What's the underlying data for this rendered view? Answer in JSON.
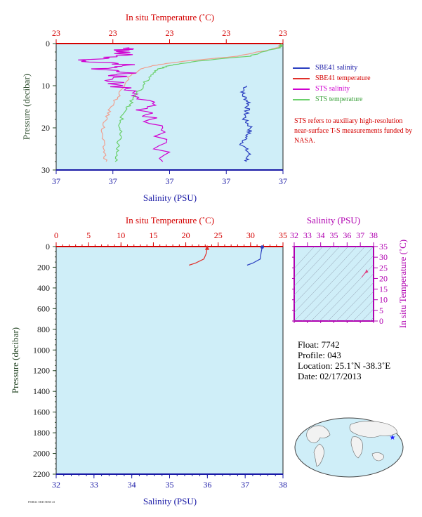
{
  "colors": {
    "plot_bg": "#cfeef8",
    "temp_axis": "#d40000",
    "sal_axis": "#1a1aa6",
    "pres_axis": "#2a4a2a",
    "sbe_sal": "#2a3fc0",
    "sbe_temp": "#e0302a",
    "sts_sal": "#d000d0",
    "sts_temp": "#6ad06a",
    "sts_temp_old": "#f0a090",
    "ts_axis": "#b000b0"
  },
  "chart_data": [
    {
      "type": "line",
      "top_xlabel": "In situ Temperature (˚C)",
      "top_ticks": [
        "23",
        "23",
        "23",
        "23",
        "23"
      ],
      "bottom_xlabel": "Salinity (PSU)",
      "bottom_ticks": [
        "37",
        "37",
        "37",
        "37",
        "37"
      ],
      "ylabel": "Pressure (decibar)",
      "y_ticks": [
        "0",
        "10",
        "20",
        "30"
      ],
      "ylim": [
        0,
        30
      ],
      "series": [
        {
          "name": "SBE41 salinity",
          "x_frac": [
            0.84,
            0.82,
            0.85,
            0.84,
            0.83,
            0.86,
            0.84,
            0.82,
            0.85,
            0.84
          ],
          "y": [
            10,
            12,
            14,
            16,
            18,
            20,
            22,
            24,
            26,
            28
          ]
        },
        {
          "name": "SBE41 temperature",
          "x_frac": [
            1.0,
            0.98,
            0.8,
            0.6,
            0.45,
            0.37,
            0.32,
            0.28,
            0.24,
            0.22,
            0.2,
            0.21,
            0.22
          ],
          "y": [
            0,
            1,
            3,
            4,
            5,
            6,
            8,
            12,
            15,
            18,
            21,
            25,
            28
          ]
        },
        {
          "name": "STS salinity",
          "x_frac": [
            0.32,
            0.28,
            0.3,
            0.1,
            0.3,
            0.2,
            0.32,
            0.25,
            0.27,
            0.38,
            0.4,
            0.4,
            0.45,
            0.47
          ],
          "y": [
            1,
            2,
            3,
            4,
            5,
            6,
            7,
            8,
            10,
            12,
            15,
            18,
            22,
            28
          ]
        },
        {
          "name": "STS temperature",
          "x_frac": [
            1.0,
            0.98,
            0.85,
            0.65,
            0.52,
            0.45,
            0.41,
            0.37,
            0.33,
            0.3,
            0.28,
            0.28,
            0.27,
            0.26
          ],
          "y": [
            0,
            1,
            3,
            4,
            5,
            6,
            8,
            11,
            14,
            16,
            19,
            22,
            25,
            28
          ]
        }
      ],
      "note": "STS refers to auxiliary high-resolution near-surface T-S measurements funded by NASA."
    },
    {
      "type": "line",
      "top_xlabel": "In situ Temperature (˚C)",
      "top_ticks": [
        "0",
        "5",
        "10",
        "15",
        "20",
        "25",
        "30",
        "35"
      ],
      "xlim_temp": [
        0,
        35
      ],
      "bottom_xlabel": "Salinity (PSU)",
      "bottom_ticks": [
        "32",
        "33",
        "34",
        "35",
        "36",
        "37",
        "38"
      ],
      "xlim_sal": [
        32,
        38
      ],
      "ylabel": "Pressure (decibar)",
      "y_ticks": [
        "0",
        "200",
        "400",
        "600",
        "800",
        "1000",
        "1200",
        "1400",
        "1600",
        "1800",
        "2000",
        "2200"
      ],
      "ylim": [
        0,
        2200
      ],
      "series": [
        {
          "name": "temperature",
          "x": [
            23.3,
            23.2,
            22.8,
            21.5,
            20.5
          ],
          "y": [
            5,
            60,
            120,
            160,
            180
          ]
        },
        {
          "name": "salinity",
          "x": [
            37.45,
            37.42,
            37.4,
            37.2,
            37.05
          ],
          "y": [
            5,
            60,
            120,
            160,
            180
          ]
        }
      ]
    },
    {
      "type": "scatter",
      "xlabel": "Salinity (PSU)",
      "x_ticks": [
        "32",
        "33",
        "34",
        "35",
        "36",
        "37",
        "38"
      ],
      "xlim": [
        32,
        38
      ],
      "ylabel": "In situ Temperature (˚C)",
      "y_ticks": [
        "0",
        "5",
        "10",
        "15",
        "20",
        "25",
        "30",
        "35"
      ],
      "ylim": [
        0,
        35
      ],
      "points": [
        {
          "x": 37.45,
          "y": 23.3
        },
        {
          "x": 37.1,
          "y": 20.5
        }
      ]
    }
  ],
  "info": {
    "float": "Float:  7742",
    "profile": "Profile:  043",
    "location": "Location:  25.1˚N  -38.3˚E",
    "date": "Date:  02/17/2013"
  },
  "footer_text": "PSBE41 ERD SEBS 43"
}
